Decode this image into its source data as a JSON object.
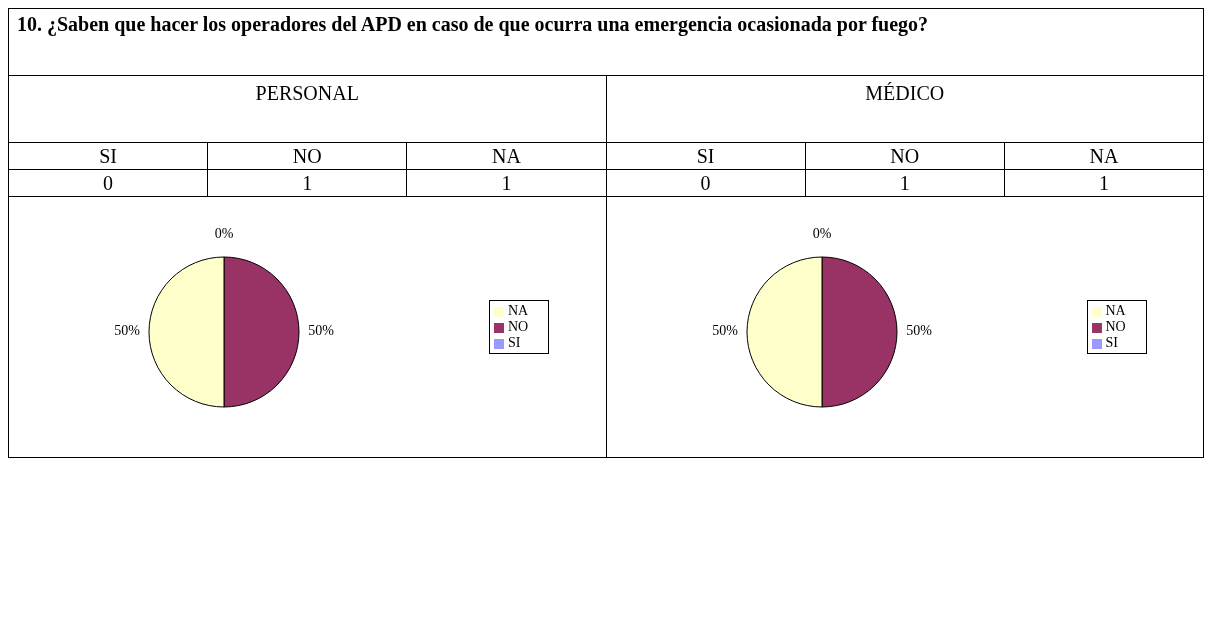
{
  "chart_data": [
    {
      "type": "other",
      "title": "10. ¿Saben que hacer los operadores del APD en caso de que ocurra una emergencia ocasionada por fuego?",
      "subtitle": "PERSONAL",
      "categories": [
        "SI",
        "NO",
        "NA"
      ],
      "values": [
        0,
        1,
        1
      ],
      "data_labels": true
    },
    {
      "type": "pie",
      "categories": [
        "SI",
        "NO",
        "NA"
      ],
      "values": [
        0,
        50,
        50
      ],
      "colors": [
        "#9999ff",
        "#993366",
        "#ffffcc"
      ],
      "value_labels": [
        "0%",
        "50%",
        "50%"
      ],
      "legend": "right"
    },
    {
      "type": "other",
      "subtitle": "MÉDICO",
      "categories": [
        "SI",
        "NO",
        "NA"
      ],
      "values": [
        0,
        1,
        1
      ],
      "data_labels": true
    },
    {
      "type": "pie",
      "categories": [
        "SI",
        "NO",
        "NA"
      ],
      "values": [
        0,
        50,
        50
      ],
      "colors": [
        "#9999ff",
        "#993366",
        "#ffffcc"
      ],
      "value_labels": [
        "0%",
        "50%",
        "50%"
      ],
      "legend": "right"
    }
  ]
}
